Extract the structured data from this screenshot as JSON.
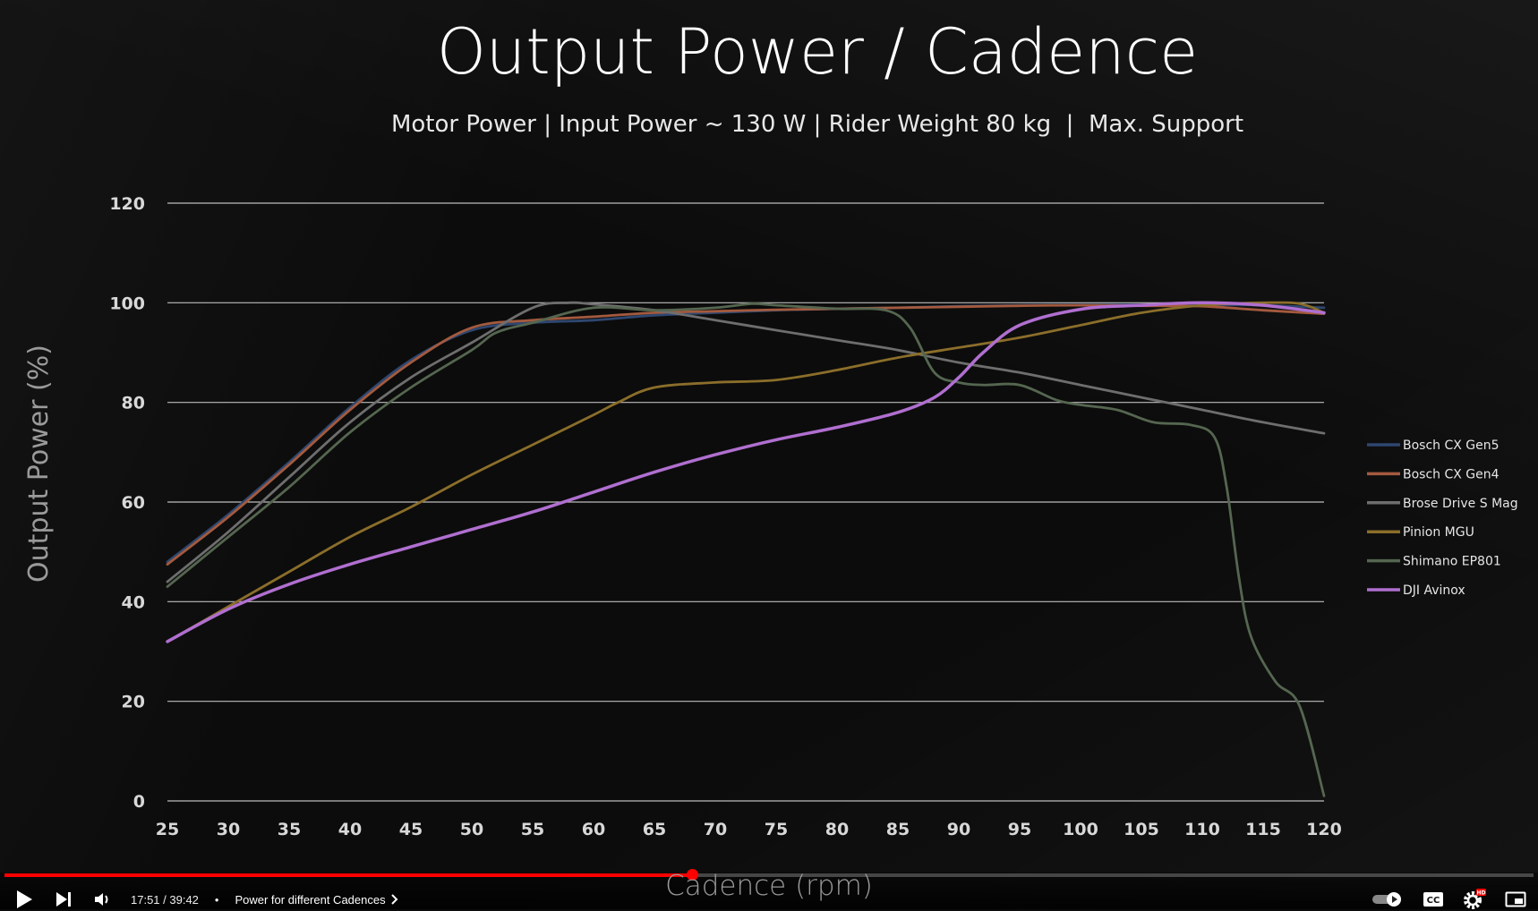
{
  "chart_data": {
    "type": "line",
    "title": "Output Power / Cadence",
    "subtitle": "Motor Power | Input Power ~ 130 W | Rider Weight 80 kg  |  Max. Support",
    "xlabel": "Cadence (rpm)",
    "ylabel": "Output Power (%)",
    "xlim": [
      25,
      120
    ],
    "ylim": [
      0,
      120
    ],
    "xticks": [
      25,
      30,
      35,
      40,
      45,
      50,
      55,
      60,
      65,
      70,
      75,
      80,
      85,
      90,
      95,
      100,
      105,
      110,
      115,
      120
    ],
    "yticks": [
      0,
      20,
      40,
      60,
      80,
      100,
      120
    ],
    "grid": "horizontal",
    "legend_position": "right",
    "series": [
      {
        "name": "Bosch CX Gen5",
        "color": "#2e4770",
        "x": [
          25,
          30,
          35,
          40,
          45,
          50,
          55,
          60,
          65,
          70,
          75,
          80,
          85,
          90,
          95,
          100,
          105,
          110,
          115,
          120
        ],
        "y": [
          48,
          57.5,
          68,
          79,
          88.5,
          94.5,
          96,
          96.5,
          97.5,
          98,
          98.5,
          98.8,
          99,
          99.3,
          99.5,
          99.6,
          99.6,
          99.6,
          99.5,
          99
        ]
      },
      {
        "name": "Bosch CX Gen4",
        "color": "#a45a3e",
        "x": [
          25,
          30,
          35,
          40,
          45,
          50,
          55,
          60,
          65,
          70,
          75,
          80,
          85,
          90,
          95,
          100,
          105,
          110,
          115,
          120
        ],
        "y": [
          47.5,
          57,
          67.5,
          78.5,
          88,
          95,
          96.5,
          97.2,
          98,
          98.3,
          98.6,
          98.8,
          99,
          99.2,
          99.4,
          99.5,
          99.4,
          99.3,
          98.5,
          97.8
        ]
      },
      {
        "name": "Brose Drive S Mag",
        "color": "#6e6e6e",
        "x": [
          25,
          30,
          35,
          40,
          45,
          50,
          55,
          58,
          60,
          65,
          70,
          75,
          80,
          85,
          90,
          95,
          100,
          105,
          110,
          115,
          120
        ],
        "y": [
          44,
          54,
          65,
          76,
          85,
          92,
          99,
          100,
          99.7,
          98.5,
          96.5,
          94.5,
          92.5,
          90.5,
          88,
          86,
          83.5,
          81,
          78.5,
          76,
          73.8
        ]
      },
      {
        "name": "Pinion MGU",
        "color": "#8b6e2a",
        "x": [
          25,
          30,
          35,
          40,
          45,
          50,
          55,
          60,
          62,
          65,
          70,
          75,
          80,
          85,
          90,
          95,
          100,
          105,
          110,
          115,
          118,
          120
        ],
        "y": [
          32,
          39,
          46,
          53,
          59,
          65.5,
          71.5,
          77.5,
          80,
          83,
          84,
          84.5,
          86.5,
          89,
          91,
          93,
          95.5,
          98,
          99.5,
          100,
          99.8,
          98
        ]
      },
      {
        "name": "Shimano EP801",
        "color": "#556650",
        "x": [
          25,
          30,
          35,
          40,
          45,
          50,
          52,
          55,
          60,
          65,
          70,
          73,
          75,
          80,
          84,
          86,
          88,
          90,
          92,
          95,
          98,
          100,
          103,
          106,
          109,
          111,
          112,
          113,
          114,
          116,
          118,
          120
        ],
        "y": [
          43,
          53,
          63,
          74,
          83,
          90.5,
          94,
          96,
          99,
          98.5,
          99,
          99.8,
          99.5,
          98.8,
          98.5,
          95,
          86,
          84,
          83.5,
          83.5,
          80.5,
          79.5,
          78.5,
          76,
          75.5,
          73,
          63,
          45,
          33,
          24,
          19,
          1
        ]
      },
      {
        "name": "DJI Avinox",
        "color": "#b06fd0",
        "x": [
          25,
          30,
          35,
          40,
          45,
          50,
          55,
          60,
          65,
          70,
          75,
          80,
          85,
          88,
          90,
          92,
          95,
          100,
          105,
          110,
          115,
          120
        ],
        "y": [
          32,
          38.5,
          43.5,
          47.5,
          51,
          54.5,
          58,
          62,
          66,
          69.5,
          72.5,
          75,
          78,
          81,
          85,
          90,
          95.5,
          98.7,
          99.5,
          100,
          99.5,
          98
        ]
      }
    ]
  },
  "player": {
    "time": "17:51 / 39:42",
    "chapter": "Power for different Cadences",
    "progress_fraction": 0.4496,
    "hd_badge": "HD",
    "cc_label": "CC"
  }
}
